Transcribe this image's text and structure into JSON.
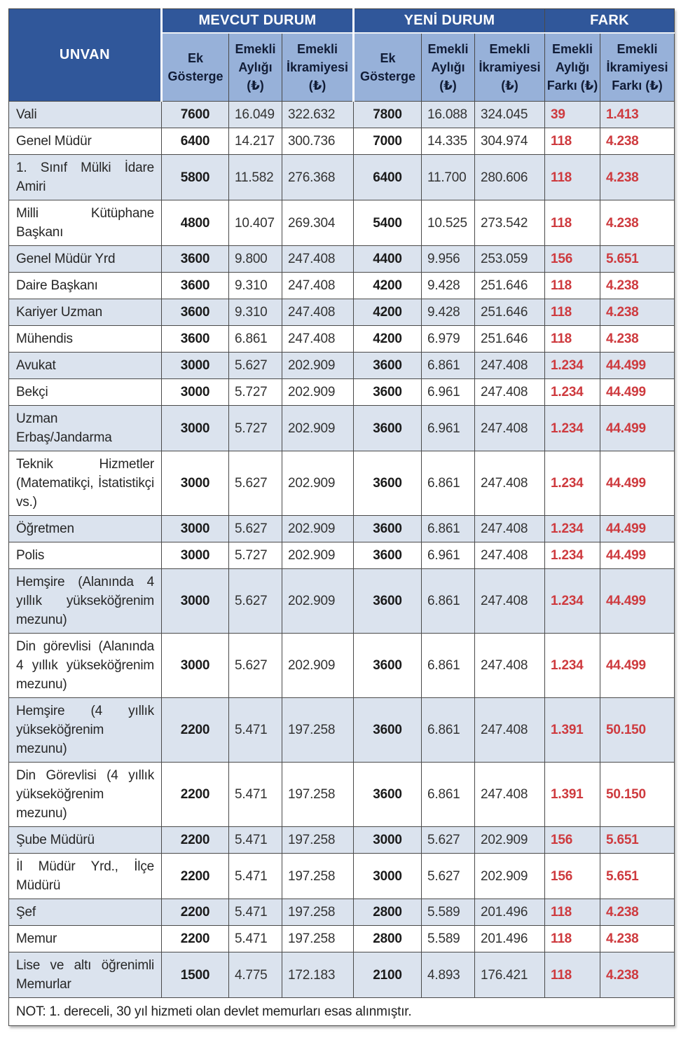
{
  "colors": {
    "header_bg": "#30579a",
    "subheader_bg": "#97b1d9",
    "row_alt_bg": "#dbe3ee",
    "fark_red": "#ce3a3e",
    "border": "#4a4a4a"
  },
  "table": {
    "unvan_header": "UNVAN",
    "group_mevcut": "MEVCUT DURUM",
    "group_yeni": "YENİ DURUM",
    "group_fark": "FARK",
    "sub": {
      "mevcut_ek": "Ek Gösterge",
      "mevcut_aylik": "Emekli Aylığı (₺)",
      "mevcut_ikramiye": "Emekli İkramiyesi (₺)",
      "yeni_ek": "Ek Gösterge",
      "yeni_aylik": "Emekli Aylığı (₺)",
      "yeni_ikramiye": "Emekli İkramiyesi (₺)",
      "fark_aylik": "Emekli Aylığı Farkı (₺)",
      "fark_ikramiye": "Emekli İkramiyesi Farkı (₺)"
    },
    "rows": [
      {
        "unvan": "Vali",
        "mevcut_ek": "7600",
        "mevcut_aylik": "16.049",
        "mevcut_ikramiye": "322.632",
        "yeni_ek": "7800",
        "yeni_aylik": "16.088",
        "yeni_ikramiye": "324.045",
        "fark_aylik": "39",
        "fark_ikramiye": "1.413"
      },
      {
        "unvan": "Genel Müdür",
        "mevcut_ek": "6400",
        "mevcut_aylik": "14.217",
        "mevcut_ikramiye": "300.736",
        "yeni_ek": "7000",
        "yeni_aylik": "14.335",
        "yeni_ikramiye": "304.974",
        "fark_aylik": "118",
        "fark_ikramiye": "4.238"
      },
      {
        "unvan": "1. Sınıf Mülki İdare Amiri",
        "mevcut_ek": "5800",
        "mevcut_aylik": "11.582",
        "mevcut_ikramiye": "276.368",
        "yeni_ek": "6400",
        "yeni_aylik": "11.700",
        "yeni_ikramiye": "280.606",
        "fark_aylik": "118",
        "fark_ikramiye": "4.238"
      },
      {
        "unvan": "Milli Kütüphane Başkanı",
        "mevcut_ek": "4800",
        "mevcut_aylik": "10.407",
        "mevcut_ikramiye": "269.304",
        "yeni_ek": "5400",
        "yeni_aylik": "10.525",
        "yeni_ikramiye": "273.542",
        "fark_aylik": "118",
        "fark_ikramiye": "4.238"
      },
      {
        "unvan": "Genel Müdür Yrd",
        "mevcut_ek": "3600",
        "mevcut_aylik": "9.800",
        "mevcut_ikramiye": "247.408",
        "yeni_ek": "4400",
        "yeni_aylik": "9.956",
        "yeni_ikramiye": "253.059",
        "fark_aylik": "156",
        "fark_ikramiye": "5.651"
      },
      {
        "unvan": "Daire Başkanı",
        "mevcut_ek": "3600",
        "mevcut_aylik": "9.310",
        "mevcut_ikramiye": "247.408",
        "yeni_ek": "4200",
        "yeni_aylik": "9.428",
        "yeni_ikramiye": "251.646",
        "fark_aylik": "118",
        "fark_ikramiye": "4.238"
      },
      {
        "unvan": "Kariyer Uzman",
        "mevcut_ek": "3600",
        "mevcut_aylik": "9.310",
        "mevcut_ikramiye": "247.408",
        "yeni_ek": "4200",
        "yeni_aylik": "9.428",
        "yeni_ikramiye": "251.646",
        "fark_aylik": "118",
        "fark_ikramiye": "4.238"
      },
      {
        "unvan": "Mühendis",
        "mevcut_ek": "3600",
        "mevcut_aylik": "6.861",
        "mevcut_ikramiye": "247.408",
        "yeni_ek": "4200",
        "yeni_aylik": "6.979",
        "yeni_ikramiye": "251.646",
        "fark_aylik": "118",
        "fark_ikramiye": "4.238"
      },
      {
        "unvan": "Avukat",
        "mevcut_ek": "3000",
        "mevcut_aylik": "5.627",
        "mevcut_ikramiye": "202.909",
        "yeni_ek": "3600",
        "yeni_aylik": "6.861",
        "yeni_ikramiye": "247.408",
        "fark_aylik": "1.234",
        "fark_ikramiye": "44.499"
      },
      {
        "unvan": "Bekçi",
        "mevcut_ek": "3000",
        "mevcut_aylik": "5.727",
        "mevcut_ikramiye": "202.909",
        "yeni_ek": "3600",
        "yeni_aylik": "6.961",
        "yeni_ikramiye": "247.408",
        "fark_aylik": "1.234",
        "fark_ikramiye": "44.499"
      },
      {
        "unvan": "Uzman Erbaş/Jandarma",
        "mevcut_ek": "3000",
        "mevcut_aylik": "5.727",
        "mevcut_ikramiye": "202.909",
        "yeni_ek": "3600",
        "yeni_aylik": "6.961",
        "yeni_ikramiye": "247.408",
        "fark_aylik": "1.234",
        "fark_ikramiye": "44.499"
      },
      {
        "unvan": "Teknik Hizmetler (Matematikçi, İstatistikçi vs.)",
        "mevcut_ek": "3000",
        "mevcut_aylik": "5.627",
        "mevcut_ikramiye": "202.909",
        "yeni_ek": "3600",
        "yeni_aylik": "6.861",
        "yeni_ikramiye": "247.408",
        "fark_aylik": "1.234",
        "fark_ikramiye": "44.499"
      },
      {
        "unvan": "Öğretmen",
        "mevcut_ek": "3000",
        "mevcut_aylik": "5.627",
        "mevcut_ikramiye": "202.909",
        "yeni_ek": "3600",
        "yeni_aylik": "6.861",
        "yeni_ikramiye": "247.408",
        "fark_aylik": "1.234",
        "fark_ikramiye": "44.499"
      },
      {
        "unvan": "Polis",
        "mevcut_ek": "3000",
        "mevcut_aylik": "5.727",
        "mevcut_ikramiye": "202.909",
        "yeni_ek": "3600",
        "yeni_aylik": "6.961",
        "yeni_ikramiye": "247.408",
        "fark_aylik": "1.234",
        "fark_ikramiye": "44.499"
      },
      {
        "unvan": "Hemşire (Alanında 4 yıllık yükseköğrenim mezunu)",
        "mevcut_ek": "3000",
        "mevcut_aylik": "5.627",
        "mevcut_ikramiye": "202.909",
        "yeni_ek": "3600",
        "yeni_aylik": "6.861",
        "yeni_ikramiye": "247.408",
        "fark_aylik": "1.234",
        "fark_ikramiye": "44.499"
      },
      {
        "unvan": "Din görevlisi (Alanında 4 yıllık yükseköğrenim mezunu)",
        "mevcut_ek": "3000",
        "mevcut_aylik": "5.627",
        "mevcut_ikramiye": "202.909",
        "yeni_ek": "3600",
        "yeni_aylik": "6.861",
        "yeni_ikramiye": "247.408",
        "fark_aylik": "1.234",
        "fark_ikramiye": "44.499"
      },
      {
        "unvan": "Hemşire (4 yıllık yükseköğrenim mezunu)",
        "mevcut_ek": "2200",
        "mevcut_aylik": "5.471",
        "mevcut_ikramiye": "197.258",
        "yeni_ek": "3600",
        "yeni_aylik": "6.861",
        "yeni_ikramiye": "247.408",
        "fark_aylik": "1.391",
        "fark_ikramiye": "50.150"
      },
      {
        "unvan": "Din Görevlisi (4 yıllık yükseköğrenim mezunu)",
        "mevcut_ek": "2200",
        "mevcut_aylik": "5.471",
        "mevcut_ikramiye": "197.258",
        "yeni_ek": "3600",
        "yeni_aylik": "6.861",
        "yeni_ikramiye": "247.408",
        "fark_aylik": "1.391",
        "fark_ikramiye": "50.150"
      },
      {
        "unvan": "Şube Müdürü",
        "mevcut_ek": "2200",
        "mevcut_aylik": "5.471",
        "mevcut_ikramiye": "197.258",
        "yeni_ek": "3000",
        "yeni_aylik": "5.627",
        "yeni_ikramiye": "202.909",
        "fark_aylik": "156",
        "fark_ikramiye": "5.651"
      },
      {
        "unvan": "İl Müdür Yrd., İlçe Müdürü",
        "mevcut_ek": "2200",
        "mevcut_aylik": "5.471",
        "mevcut_ikramiye": "197.258",
        "yeni_ek": "3000",
        "yeni_aylik": "5.627",
        "yeni_ikramiye": "202.909",
        "fark_aylik": "156",
        "fark_ikramiye": "5.651"
      },
      {
        "unvan": "Şef",
        "mevcut_ek": "2200",
        "mevcut_aylik": "5.471",
        "mevcut_ikramiye": "197.258",
        "yeni_ek": "2800",
        "yeni_aylik": "5.589",
        "yeni_ikramiye": "201.496",
        "fark_aylik": "118",
        "fark_ikramiye": "4.238"
      },
      {
        "unvan": "Memur",
        "mevcut_ek": "2200",
        "mevcut_aylik": "5.471",
        "mevcut_ikramiye": "197.258",
        "yeni_ek": "2800",
        "yeni_aylik": "5.589",
        "yeni_ikramiye": "201.496",
        "fark_aylik": "118",
        "fark_ikramiye": "4.238"
      },
      {
        "unvan": "Lise ve altı öğrenimli Memurlar",
        "mevcut_ek": "1500",
        "mevcut_aylik": "4.775",
        "mevcut_ikramiye": "172.183",
        "yeni_ek": "2100",
        "yeni_aylik": "4.893",
        "yeni_ikramiye": "176.421",
        "fark_aylik": "118",
        "fark_ikramiye": "4.238"
      }
    ],
    "note": "NOT: 1. dereceli, 30 yıl hizmeti olan devlet memurları esas alınmıştır."
  }
}
